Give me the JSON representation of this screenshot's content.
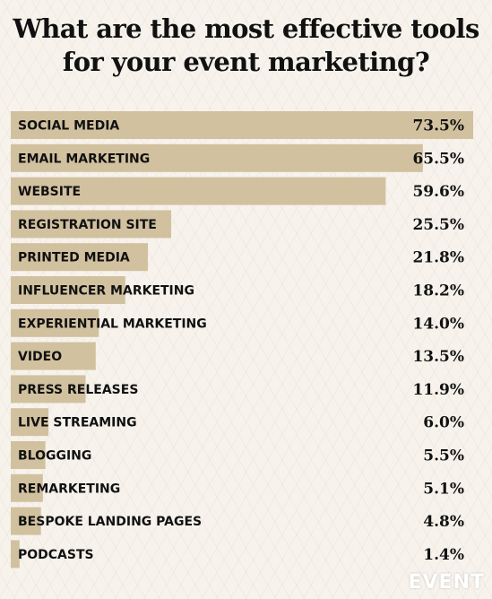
{
  "header": {
    "title_line1": "What are the most effective tools",
    "title_line2": "for your event marketing?"
  },
  "logo_text": "EVENT",
  "colors": {
    "bar": "#d1c19f",
    "text": "#111111",
    "background": "#f7f3ec"
  },
  "chart_data": {
    "type": "bar",
    "orientation": "horizontal",
    "categories": [
      "SOCIAL MEDIA",
      "EMAIL MARKETING",
      "WEBSITE",
      "REGISTRATION SITE",
      "PRINTED MEDIA",
      "INFLUENCER MARKETING",
      "EXPERIENTIAL MARKETING",
      "VIDEO",
      "PRESS RELEASES",
      "LIVE STREAMING",
      "BLOGGING",
      "REMARKETING",
      "BESPOKE LANDING PAGES",
      "PODCASTS"
    ],
    "values": [
      73.5,
      65.5,
      59.6,
      25.5,
      21.8,
      18.2,
      14.0,
      13.5,
      11.9,
      6.0,
      5.5,
      5.1,
      4.8,
      1.4
    ],
    "value_labels": [
      "73.5%",
      "65.5%",
      "59.6%",
      "25.5%",
      "21.8%",
      "18.2%",
      "14.0%",
      "13.5%",
      "11.9%",
      "6.0%",
      "5.5%",
      "5.1%",
      "4.8%",
      "1.4%"
    ],
    "title": "What are the most effective tools for your event marketing?",
    "xlabel": "",
    "ylabel": "",
    "xlim": [
      0,
      73.5
    ],
    "grid": false,
    "legend": "none"
  }
}
